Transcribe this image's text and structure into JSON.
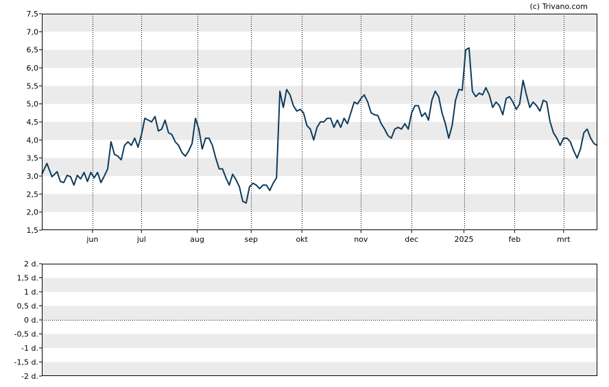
{
  "credit": "(c) Trivano.com",
  "colors": {
    "line": "#0b3a5b",
    "band": "#ebebeb",
    "axis": "#000000",
    "grid": "#000000"
  },
  "chart_data": [
    {
      "type": "line",
      "x_tick_labels": [
        "jun",
        "jul",
        "aug",
        "sep",
        "okt",
        "nov",
        "dec",
        "2025",
        "feb",
        "mrt"
      ],
      "x_tick_positions": [
        30,
        59,
        92,
        124,
        154,
        189,
        219,
        250,
        280,
        309
      ],
      "x_range": [
        0,
        329
      ],
      "y_tick_labels": [
        "7,5",
        "7,0",
        "6,5",
        "6,0",
        "5,5",
        "5,0",
        "4,5",
        "4,0",
        "3,5",
        "3,0",
        "2,5",
        "2,0",
        "1,5"
      ],
      "ylim": [
        1.5,
        7.5
      ],
      "y_step": 0.5,
      "vertical_grid": "dotted",
      "alternating_bands": true,
      "series": [
        {
          "points": [
            [
              0,
              3.05
            ],
            [
              3,
              3.35
            ],
            [
              6,
              2.98
            ],
            [
              9,
              3.12
            ],
            [
              11,
              2.85
            ],
            [
              13,
              2.82
            ],
            [
              15,
              3.02
            ],
            [
              17,
              2.98
            ],
            [
              19,
              2.75
            ],
            [
              21,
              3.02
            ],
            [
              23,
              2.92
            ],
            [
              25,
              3.1
            ],
            [
              27,
              2.85
            ],
            [
              29,
              3.1
            ],
            [
              31,
              2.95
            ],
            [
              33,
              3.1
            ],
            [
              35,
              2.82
            ],
            [
              37,
              3.0
            ],
            [
              39,
              3.2
            ],
            [
              41,
              3.95
            ],
            [
              43,
              3.6
            ],
            [
              45,
              3.55
            ],
            [
              47,
              3.45
            ],
            [
              49,
              3.85
            ],
            [
              51,
              3.95
            ],
            [
              53,
              3.85
            ],
            [
              55,
              4.05
            ],
            [
              57,
              3.8
            ],
            [
              59,
              4.15
            ],
            [
              61,
              4.6
            ],
            [
              63,
              4.55
            ],
            [
              65,
              4.5
            ],
            [
              67,
              4.65
            ],
            [
              69,
              4.25
            ],
            [
              71,
              4.3
            ],
            [
              73,
              4.55
            ],
            [
              75,
              4.2
            ],
            [
              77,
              4.15
            ],
            [
              79,
              3.95
            ],
            [
              81,
              3.85
            ],
            [
              83,
              3.65
            ],
            [
              85,
              3.55
            ],
            [
              87,
              3.7
            ],
            [
              89,
              3.9
            ],
            [
              91,
              4.6
            ],
            [
              93,
              4.3
            ],
            [
              95,
              3.75
            ],
            [
              97,
              4.05
            ],
            [
              99,
              4.05
            ],
            [
              101,
              3.85
            ],
            [
              103,
              3.5
            ],
            [
              105,
              3.2
            ],
            [
              107,
              3.2
            ],
            [
              109,
              2.95
            ],
            [
              111,
              2.75
            ],
            [
              113,
              3.05
            ],
            [
              115,
              2.9
            ],
            [
              117,
              2.7
            ],
            [
              119,
              2.3
            ],
            [
              121,
              2.25
            ],
            [
              123,
              2.7
            ],
            [
              125,
              2.8
            ],
            [
              127,
              2.75
            ],
            [
              129,
              2.65
            ],
            [
              131,
              2.75
            ],
            [
              133,
              2.75
            ],
            [
              135,
              2.6
            ],
            [
              137,
              2.8
            ],
            [
              139,
              2.95
            ],
            [
              141,
              5.35
            ],
            [
              143,
              4.9
            ],
            [
              145,
              5.4
            ],
            [
              147,
              5.25
            ],
            [
              149,
              4.95
            ],
            [
              151,
              4.8
            ],
            [
              153,
              4.85
            ],
            [
              155,
              4.75
            ],
            [
              157,
              4.4
            ],
            [
              159,
              4.3
            ],
            [
              161,
              4.0
            ],
            [
              163,
              4.35
            ],
            [
              165,
              4.5
            ],
            [
              167,
              4.5
            ],
            [
              169,
              4.6
            ],
            [
              171,
              4.6
            ],
            [
              173,
              4.35
            ],
            [
              175,
              4.55
            ],
            [
              177,
              4.35
            ],
            [
              179,
              4.6
            ],
            [
              181,
              4.45
            ],
            [
              183,
              4.75
            ],
            [
              185,
              5.05
            ],
            [
              187,
              5.0
            ],
            [
              189,
              5.15
            ],
            [
              191,
              5.25
            ],
            [
              193,
              5.05
            ],
            [
              195,
              4.75
            ],
            [
              197,
              4.7
            ],
            [
              199,
              4.68
            ],
            [
              201,
              4.45
            ],
            [
              203,
              4.3
            ],
            [
              205,
              4.12
            ],
            [
              207,
              4.05
            ],
            [
              209,
              4.3
            ],
            [
              211,
              4.35
            ],
            [
              213,
              4.3
            ],
            [
              215,
              4.45
            ],
            [
              217,
              4.3
            ],
            [
              219,
              4.75
            ],
            [
              221,
              4.95
            ],
            [
              223,
              4.95
            ],
            [
              225,
              4.65
            ],
            [
              227,
              4.75
            ],
            [
              229,
              4.55
            ],
            [
              231,
              5.1
            ],
            [
              233,
              5.35
            ],
            [
              235,
              5.2
            ],
            [
              237,
              4.75
            ],
            [
              239,
              4.45
            ],
            [
              241,
              4.05
            ],
            [
              243,
              4.4
            ],
            [
              245,
              5.1
            ],
            [
              247,
              5.4
            ],
            [
              249,
              5.38
            ],
            [
              251,
              6.5
            ],
            [
              253,
              6.55
            ],
            [
              255,
              5.35
            ],
            [
              257,
              5.2
            ],
            [
              259,
              5.3
            ],
            [
              261,
              5.25
            ],
            [
              263,
              5.45
            ],
            [
              265,
              5.25
            ],
            [
              267,
              4.9
            ],
            [
              269,
              5.05
            ],
            [
              271,
              4.95
            ],
            [
              273,
              4.7
            ],
            [
              275,
              5.15
            ],
            [
              277,
              5.2
            ],
            [
              279,
              5.05
            ],
            [
              281,
              4.85
            ],
            [
              283,
              5.0
            ],
            [
              285,
              5.65
            ],
            [
              287,
              5.25
            ],
            [
              289,
              4.9
            ],
            [
              291,
              5.05
            ],
            [
              293,
              4.95
            ],
            [
              295,
              4.8
            ],
            [
              297,
              5.1
            ],
            [
              299,
              5.05
            ],
            [
              301,
              4.5
            ],
            [
              303,
              4.2
            ],
            [
              305,
              4.05
            ],
            [
              307,
              3.85
            ],
            [
              309,
              4.05
            ],
            [
              311,
              4.05
            ],
            [
              313,
              3.95
            ],
            [
              315,
              3.7
            ],
            [
              317,
              3.5
            ],
            [
              319,
              3.75
            ],
            [
              321,
              4.2
            ],
            [
              323,
              4.3
            ],
            [
              325,
              4.05
            ],
            [
              327,
              3.9
            ],
            [
              329,
              3.85
            ]
          ]
        }
      ]
    },
    {
      "type": "bar",
      "y_tick_labels": [
        "2 d.",
        "1,5 d.",
        "1 d.",
        "0,5 d.",
        "0 d.",
        "-0,5 d.",
        "-1 d.",
        "-1,5 d.",
        "-2 d."
      ],
      "ylim": [
        -2,
        2
      ],
      "y_step": 0.5,
      "alternating_bands": true,
      "values": []
    }
  ]
}
